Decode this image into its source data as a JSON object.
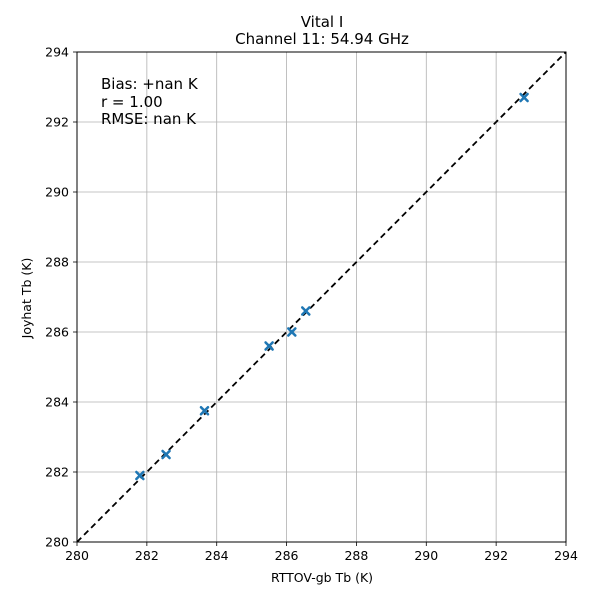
{
  "chart_data": {
    "type": "scatter",
    "title": "Vital I",
    "subtitle": "Channel 11: 54.94 GHz",
    "xlabel": "RTTOV-gb Tb (K)",
    "ylabel": "Joyhat Tb (K)",
    "xlim": [
      280,
      294
    ],
    "ylim": [
      280,
      294
    ],
    "xticks": [
      280,
      282,
      284,
      286,
      288,
      290,
      292,
      294
    ],
    "yticks": [
      280,
      282,
      284,
      286,
      288,
      290,
      292,
      294
    ],
    "grid": true,
    "marker": "x",
    "marker_color": "#1f77b4",
    "reference_line": {
      "style": "dashed",
      "color": "#000000",
      "from": [
        280,
        280
      ],
      "to": [
        294,
        294
      ]
    },
    "points": [
      {
        "x": 281.8,
        "y": 281.9
      },
      {
        "x": 282.55,
        "y": 282.5
      },
      {
        "x": 283.65,
        "y": 283.75
      },
      {
        "x": 285.5,
        "y": 285.6
      },
      {
        "x": 286.15,
        "y": 286.0
      },
      {
        "x": 286.55,
        "y": 286.6
      },
      {
        "x": 292.8,
        "y": 292.7
      }
    ],
    "annotation": [
      "Bias: +nan K",
      "r = 1.00",
      "RMSE: nan K"
    ]
  }
}
